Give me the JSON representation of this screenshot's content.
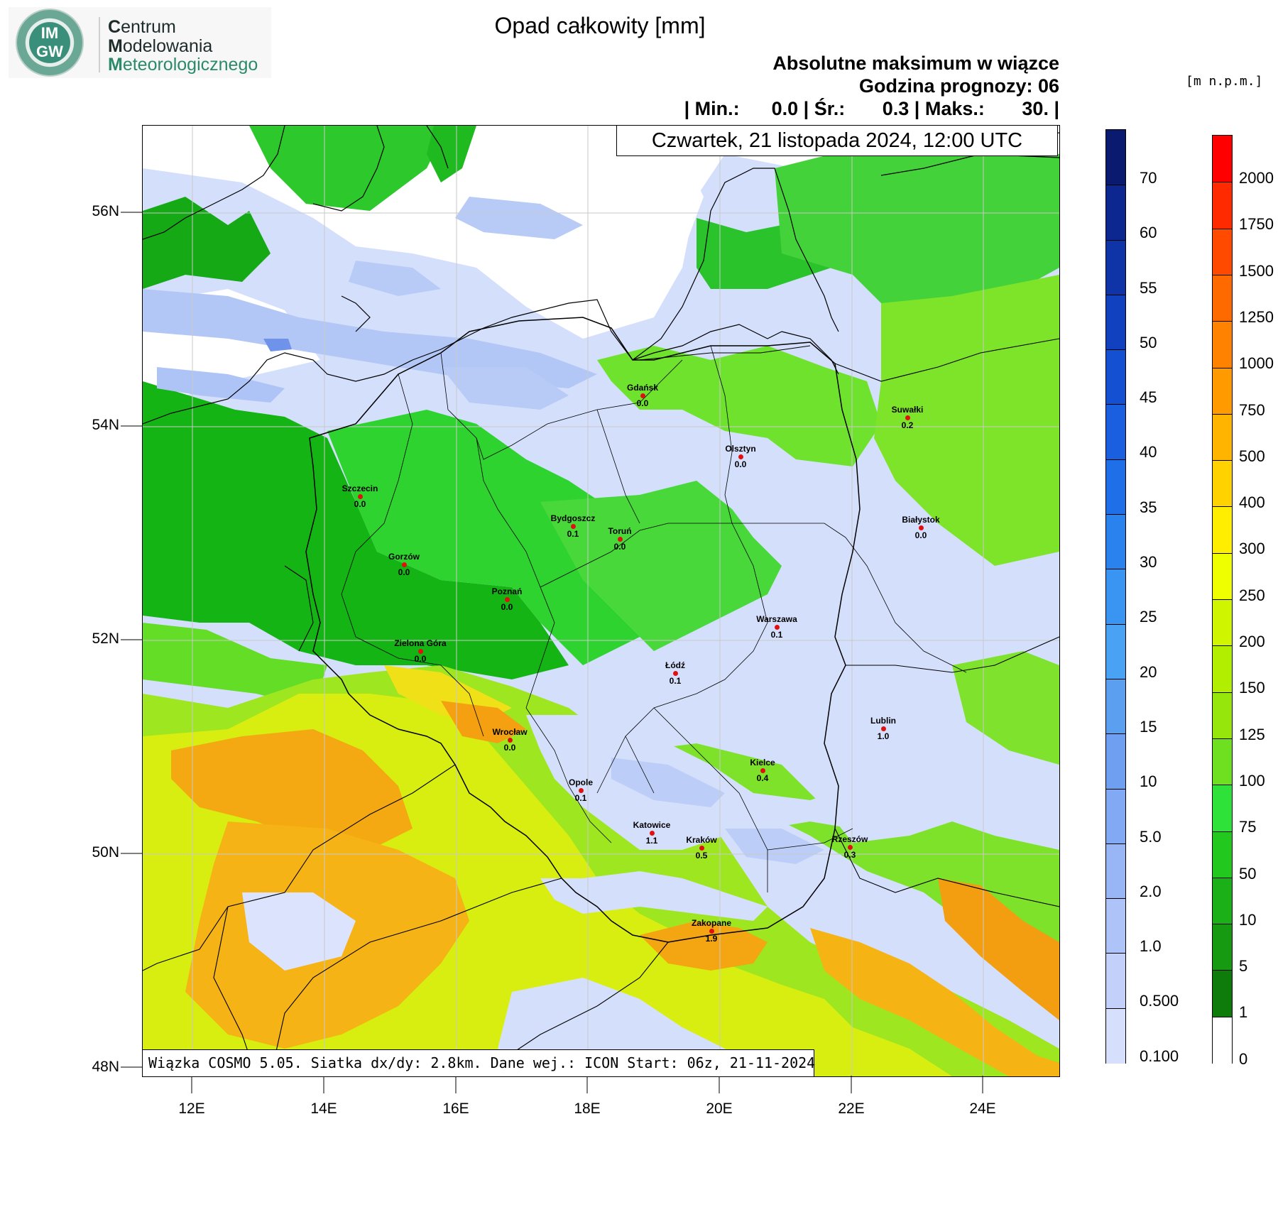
{
  "logo": {
    "badge_line1": "IM",
    "badge_line2": "GW",
    "line1_initial": "C",
    "line1_rest": "entrum",
    "line2_initial": "M",
    "line2_rest": "odelowania",
    "line3_initial": "M",
    "line3_rest": "eteorologicznego"
  },
  "header": {
    "title": "Opad całkowity [mm]",
    "subtitle1": "Absolutne maksimum w wiązce",
    "subtitle2": "Godzina prognozy: 06",
    "stats": "| Min.:      0.0 | Śr.:       0.3 | Maks.:       30. |",
    "date": "Czwartek, 21 listopada 2024, 12:00 UTC"
  },
  "footer": "Wiązka COSMO 5.05. Siatka dx/dy: 2.8km. Dane wej.: ICON Start: 06z, 21-11-2024",
  "axes": {
    "lat_labels": [
      "56N",
      "54N",
      "52N",
      "50N",
      "48N"
    ],
    "lon_labels": [
      "12E",
      "14E",
      "16E",
      "18E",
      "20E",
      "22E",
      "24E"
    ]
  },
  "cities": [
    {
      "name": "Gdańsk",
      "value": "0.0"
    },
    {
      "name": "Suwałki",
      "value": "0.2"
    },
    {
      "name": "Olsztyn",
      "value": "0.0"
    },
    {
      "name": "Szczecin",
      "value": "0.0"
    },
    {
      "name": "Bydgoszcz",
      "value": "0.1"
    },
    {
      "name": "Toruń",
      "value": "0.0"
    },
    {
      "name": "Białystok",
      "value": "0.0"
    },
    {
      "name": "Gorzów",
      "value": "0.0"
    },
    {
      "name": "Poznań",
      "value": "0.0"
    },
    {
      "name": "Warszawa",
      "value": "0.1"
    },
    {
      "name": "Zielona Góra",
      "value": "0.0"
    },
    {
      "name": "Łódź",
      "value": "0.1"
    },
    {
      "name": "Lublin",
      "value": "1.0"
    },
    {
      "name": "Wrocław",
      "value": "0.0"
    },
    {
      "name": "Kielce",
      "value": "0.4"
    },
    {
      "name": "Opole",
      "value": "0.1"
    },
    {
      "name": "Katowice",
      "value": "1.1"
    },
    {
      "name": "Kraków",
      "value": "0.5"
    },
    {
      "name": "Rzeszów",
      "value": "0.3"
    },
    {
      "name": "Zakopane",
      "value": "1.9"
    }
  ],
  "precip_scale": {
    "labels": [
      "70",
      "60",
      "55",
      "50",
      "45",
      "40",
      "35",
      "30",
      "25",
      "20",
      "15",
      "10",
      "5.0",
      "2.0",
      "1.0",
      "0.500",
      "0.100"
    ],
    "colors": [
      "#0a1a6e",
      "#0c2790",
      "#0e34a8",
      "#1141bf",
      "#1450d2",
      "#195fdf",
      "#1f70e8",
      "#2a82ee",
      "#3a94f2",
      "#4aa2f4",
      "#5a9ff0",
      "#6f9ff0",
      "#82a9f3",
      "#98b6f6",
      "#aec4f8",
      "#c3d1fa",
      "#d6dffc"
    ]
  },
  "elev_scale": {
    "unit": "[m n.p.m.]",
    "labels": [
      "2000",
      "1750",
      "1500",
      "1250",
      "1000",
      "750",
      "500",
      "400",
      "300",
      "250",
      "200",
      "150",
      "125",
      "100",
      "75",
      "50",
      "10",
      "5",
      "1",
      "0"
    ],
    "colors": [
      "#ff0000",
      "#ff2a00",
      "#ff4a00",
      "#ff6a00",
      "#ff8200",
      "#ff9a00",
      "#ffb400",
      "#ffd200",
      "#ffee00",
      "#f0ff00",
      "#d0f500",
      "#b2ee00",
      "#96e60c",
      "#6fe020",
      "#2ee23a",
      "#22c81e",
      "#1cb018",
      "#159a12",
      "#0d7c0a",
      "#ffffff"
    ]
  },
  "colors": {
    "sea": "#ffffff",
    "lowland": "#d4dffc",
    "green_dark": "#0fb00f",
    "green": "#2cd22c",
    "green_light": "#8fe61e",
    "yellow": "#f2f01a",
    "orange": "#f7b21a",
    "city_dot": "#e01010"
  }
}
